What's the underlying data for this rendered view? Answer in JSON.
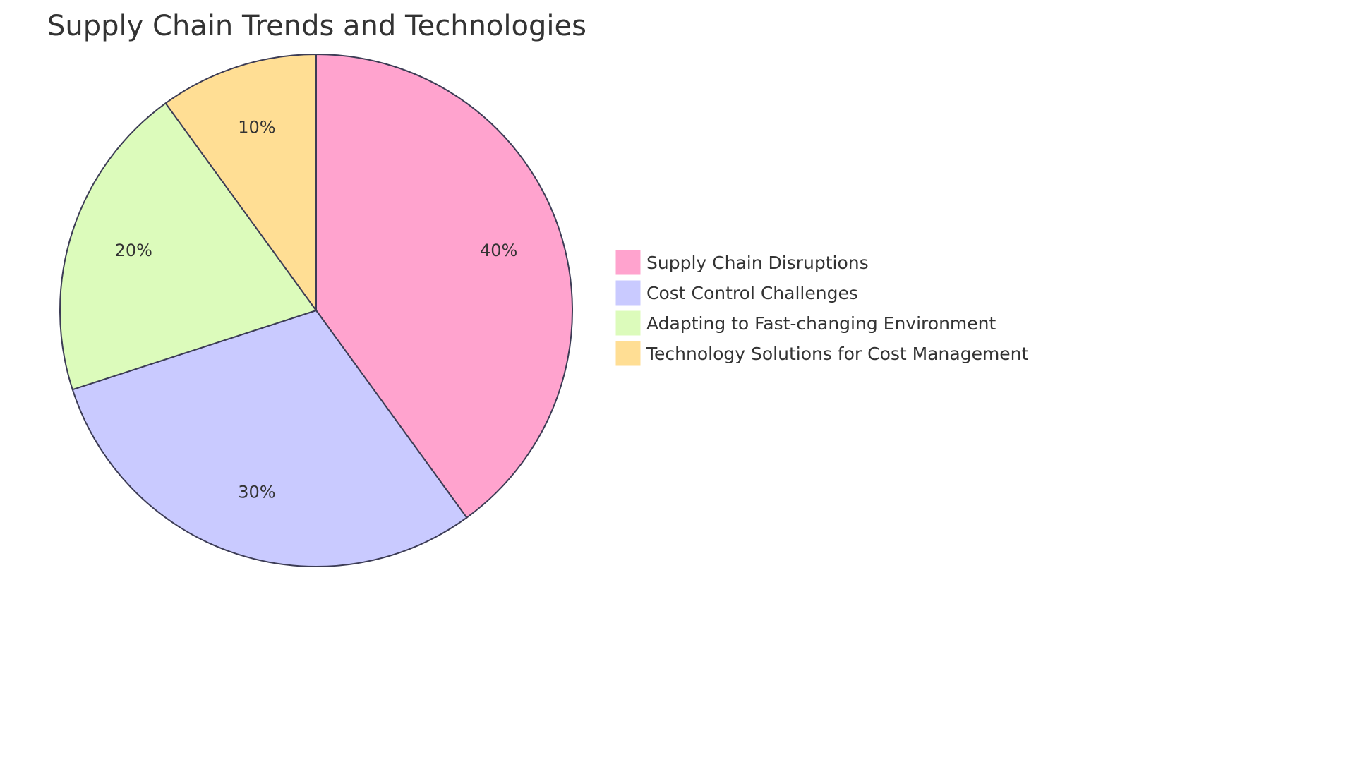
{
  "chart_data": {
    "type": "pie",
    "title": "Supply Chain Trends and Technologies",
    "categories": [
      "Supply Chain Disruptions",
      "Cost Control Challenges",
      "Adapting to Fast-changing Environment",
      "Technology Solutions for Cost Management"
    ],
    "values": [
      40,
      30,
      20,
      10
    ],
    "labels": [
      "40%",
      "30%",
      "20%",
      "10%"
    ],
    "colors": [
      "#FFA3CE",
      "#C9CAFF",
      "#DCFBBB",
      "#FFDE94"
    ],
    "stroke_color": "#3C3C55",
    "legend_position": "right"
  }
}
